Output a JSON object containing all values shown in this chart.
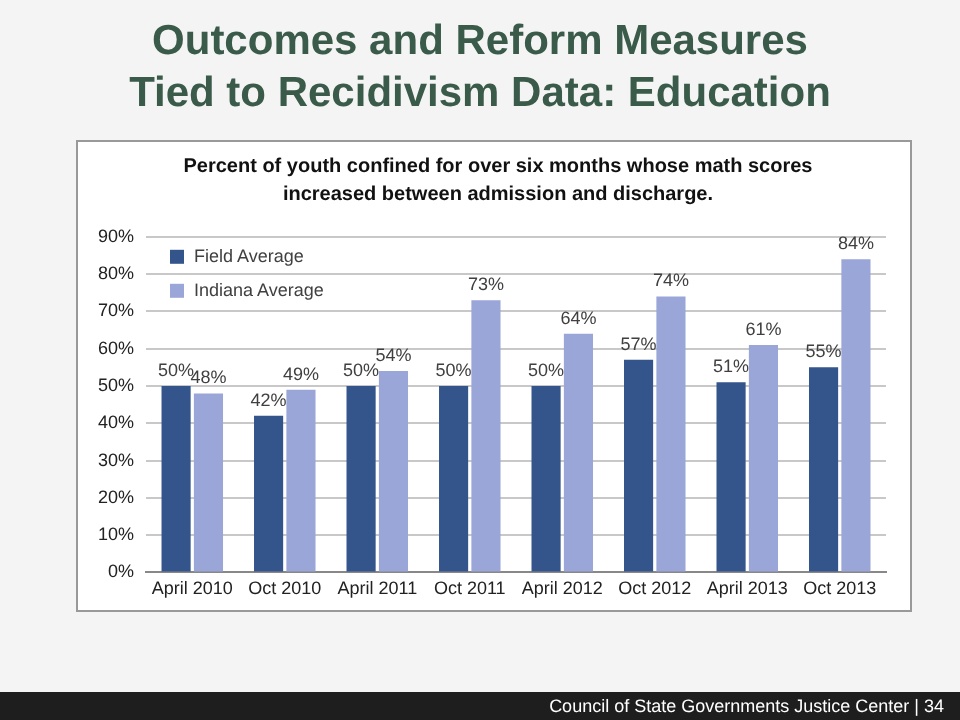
{
  "chart_data": {
    "type": "bar",
    "title": "Outcomes and Reform Measures\nTied to Recidivism Data: Education",
    "subtitle": "Percent of youth confined for over six months whose math scores increased between admission and discharge.",
    "categories": [
      "April 2010",
      "Oct 2010",
      "April 2011",
      "Oct 2011",
      "April 2012",
      "Oct 2012",
      "April 2013",
      "Oct 2013"
    ],
    "series": [
      {
        "name": "Field Average",
        "color": "#34558b",
        "values": [
          50,
          42,
          50,
          50,
          50,
          57,
          51,
          55
        ],
        "value_labels": [
          "50%",
          "42%",
          "50%",
          "50%",
          "50%",
          "57%",
          "51%",
          "55%"
        ]
      },
      {
        "name": "Indiana Average",
        "color": "#9aa5d8",
        "values": [
          48,
          49,
          54,
          73,
          64,
          74,
          61,
          84
        ],
        "value_labels": [
          "48%",
          "49%",
          "54%",
          "73%",
          "64%",
          "74%",
          "61%",
          "84%"
        ]
      }
    ],
    "ylim": [
      0,
      90
    ],
    "yticks": [
      {
        "value": 0,
        "label": "0%"
      },
      {
        "value": 10,
        "label": "10%"
      },
      {
        "value": 20,
        "label": "20%"
      },
      {
        "value": 30,
        "label": "30%"
      },
      {
        "value": 40,
        "label": "40%"
      },
      {
        "value": 50,
        "label": "50%"
      },
      {
        "value": 60,
        "label": "60%"
      },
      {
        "value": 70,
        "label": "70%"
      },
      {
        "value": 80,
        "label": "80%"
      },
      {
        "value": 90,
        "label": "90%"
      }
    ],
    "grid": "y",
    "legend": "top left",
    "annotations": [
      "Council of State Governments Justice Center | 34"
    ]
  }
}
